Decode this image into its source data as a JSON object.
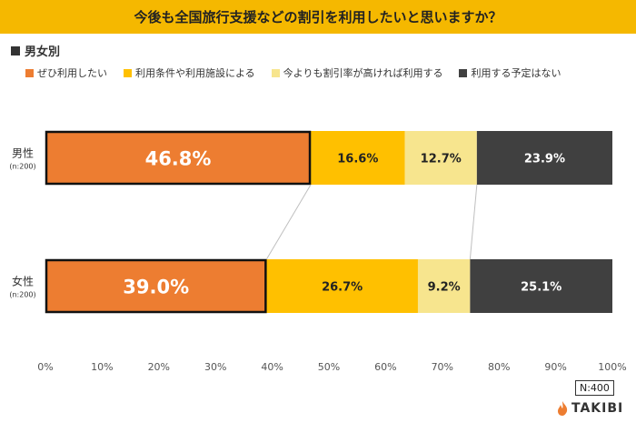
{
  "title": "今後も全国旅行支援などの割引を利用したいと思いますか？",
  "subtitle": "男女別",
  "sample_total": "N:400",
  "brand": "TAKIBI",
  "chart_data": {
    "type": "bar",
    "orientation": "horizontal-stacked-100",
    "categories": [
      {
        "label": "男性",
        "sublabel": "(n:200)"
      },
      {
        "label": "女性",
        "sublabel": "(n:200)"
      }
    ],
    "series": [
      {
        "name": "ぜひ利用したい",
        "color": "#ed7d31",
        "values": [
          46.8,
          39.0
        ],
        "labels": [
          "46.8%",
          "39.0%"
        ]
      },
      {
        "name": "利用条件や利用施設による",
        "color": "#ffc000",
        "values": [
          16.6,
          26.7
        ],
        "labels": [
          "16.6%",
          "26.7%"
        ]
      },
      {
        "name": "今よりも割引率が高ければ利用する",
        "color": "#f7e58e",
        "values": [
          12.7,
          9.2
        ],
        "labels": [
          "12.7%",
          "9.2%"
        ]
      },
      {
        "name": "利用する予定はない",
        "color": "#404040",
        "values": [
          23.9,
          25.1
        ],
        "labels": [
          "23.9%",
          "25.1%"
        ]
      }
    ],
    "x_ticks": [
      "0%",
      "10%",
      "20%",
      "30%",
      "40%",
      "50%",
      "60%",
      "70%",
      "80%",
      "90%",
      "100%"
    ],
    "xlim": [
      0,
      100
    ],
    "highlight_series": "ぜひ利用したい",
    "legend_position": "top",
    "grid": false
  }
}
